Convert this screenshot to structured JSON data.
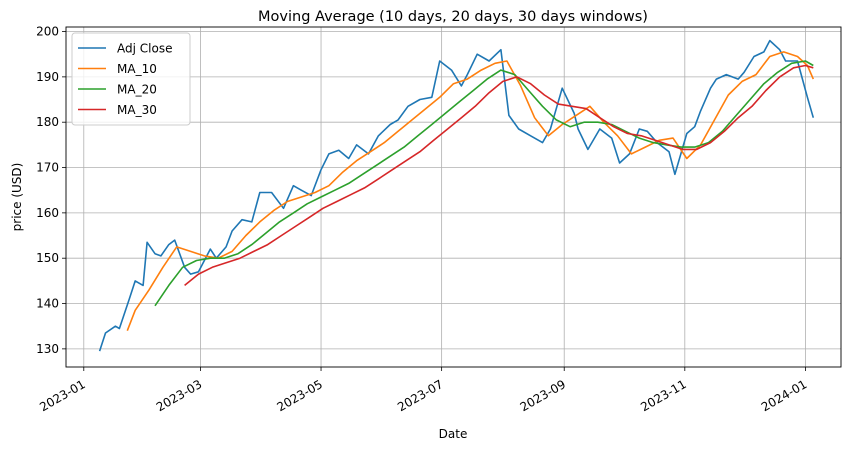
{
  "chart_data": {
    "type": "line",
    "title": "Moving Average (10 days, 20 days, 30 days windows)",
    "xlabel": "Date",
    "ylabel": "price (USD)",
    "xlim": [
      "2022-12-23",
      "2024-01-19"
    ],
    "ylim": [
      126,
      201
    ],
    "grid": true,
    "legend_position": "top-left",
    "x_ticks": [
      "2023-01",
      "2023-03",
      "2023-05",
      "2023-07",
      "2023-09",
      "2023-11",
      "2024-01"
    ],
    "y_ticks": [
      130,
      140,
      150,
      160,
      170,
      180,
      190,
      200
    ],
    "series": [
      {
        "name": "Adj Close",
        "color": "#1f77b4",
        "points": [
          [
            "2023-01-09",
            129.5
          ],
          [
            "2023-01-12",
            133.5
          ],
          [
            "2023-01-17",
            135
          ],
          [
            "2023-01-19",
            134.5
          ],
          [
            "2023-01-24",
            141
          ],
          [
            "2023-01-27",
            145
          ],
          [
            "2023-01-31",
            144
          ],
          [
            "2023-02-02",
            153.5
          ],
          [
            "2023-02-06",
            151
          ],
          [
            "2023-02-09",
            150.5
          ],
          [
            "2023-02-13",
            153
          ],
          [
            "2023-02-16",
            154
          ],
          [
            "2023-02-21",
            148
          ],
          [
            "2023-02-24",
            146.5
          ],
          [
            "2023-02-28",
            147
          ],
          [
            "2023-03-06",
            152
          ],
          [
            "2023-03-09",
            150
          ],
          [
            "2023-03-14",
            152.5
          ],
          [
            "2023-03-17",
            156
          ],
          [
            "2023-03-22",
            158.5
          ],
          [
            "2023-03-27",
            158
          ],
          [
            "2023-03-31",
            164.5
          ],
          [
            "2023-04-06",
            164.5
          ],
          [
            "2023-04-12",
            161
          ],
          [
            "2023-04-17",
            166
          ],
          [
            "2023-04-21",
            165
          ],
          [
            "2023-04-26",
            163.8
          ],
          [
            "2023-05-01",
            169.5
          ],
          [
            "2023-05-05",
            173
          ],
          [
            "2023-05-10",
            173.8
          ],
          [
            "2023-05-15",
            172
          ],
          [
            "2023-05-19",
            175
          ],
          [
            "2023-05-25",
            173
          ],
          [
            "2023-05-30",
            177
          ],
          [
            "2023-06-05",
            179.5
          ],
          [
            "2023-06-09",
            180.5
          ],
          [
            "2023-06-14",
            183.5
          ],
          [
            "2023-06-20",
            185
          ],
          [
            "2023-06-26",
            185.5
          ],
          [
            "2023-06-30",
            193.5
          ],
          [
            "2023-07-06",
            191.5
          ],
          [
            "2023-07-11",
            188
          ],
          [
            "2023-07-14",
            190.5
          ],
          [
            "2023-07-19",
            195
          ],
          [
            "2023-07-25",
            193.5
          ],
          [
            "2023-07-31",
            196
          ],
          [
            "2023-08-04",
            181.5
          ],
          [
            "2023-08-09",
            178.5
          ],
          [
            "2023-08-15",
            177
          ],
          [
            "2023-08-21",
            175.5
          ],
          [
            "2023-08-25",
            178.5
          ],
          [
            "2023-08-31",
            187.5
          ],
          [
            "2023-09-06",
            182
          ],
          [
            "2023-09-08",
            178.5
          ],
          [
            "2023-09-13",
            174
          ],
          [
            "2023-09-19",
            178.5
          ],
          [
            "2023-09-25",
            176.5
          ],
          [
            "2023-09-29",
            171
          ],
          [
            "2023-10-04",
            173
          ],
          [
            "2023-10-09",
            178.5
          ],
          [
            "2023-10-13",
            178
          ],
          [
            "2023-10-18",
            175.5
          ],
          [
            "2023-10-24",
            173.5
          ],
          [
            "2023-10-27",
            168.5
          ],
          [
            "2023-11-02",
            177.5
          ],
          [
            "2023-11-06",
            179
          ],
          [
            "2023-11-09",
            182.5
          ],
          [
            "2023-11-14",
            187.5
          ],
          [
            "2023-11-17",
            189.5
          ],
          [
            "2023-11-22",
            190.5
          ],
          [
            "2023-11-28",
            189.5
          ],
          [
            "2023-12-01",
            191
          ],
          [
            "2023-12-06",
            194.5
          ],
          [
            "2023-12-11",
            195.5
          ],
          [
            "2023-12-14",
            198
          ],
          [
            "2023-12-19",
            196
          ],
          [
            "2023-12-22",
            193.5
          ],
          [
            "2023-12-28",
            193.5
          ],
          [
            "2024-01-02",
            185.5
          ],
          [
            "2024-01-05",
            181
          ]
        ]
      },
      {
        "name": "MA_10",
        "color": "#ff7f0e",
        "points": [
          [
            "2023-01-23",
            134
          ],
          [
            "2023-01-27",
            138.5
          ],
          [
            "2023-02-03",
            143
          ],
          [
            "2023-02-10",
            148
          ],
          [
            "2023-02-17",
            152.5
          ],
          [
            "2023-02-24",
            151.5
          ],
          [
            "2023-03-03",
            150.5
          ],
          [
            "2023-03-10",
            150
          ],
          [
            "2023-03-17",
            151.5
          ],
          [
            "2023-03-24",
            155
          ],
          [
            "2023-03-31",
            158
          ],
          [
            "2023-04-07",
            160.5
          ],
          [
            "2023-04-14",
            162.5
          ],
          [
            "2023-04-21",
            163.5
          ],
          [
            "2023-04-28",
            164.5
          ],
          [
            "2023-05-05",
            166
          ],
          [
            "2023-05-12",
            169
          ],
          [
            "2023-05-19",
            171.5
          ],
          [
            "2023-05-26",
            173.5
          ],
          [
            "2023-06-02",
            175.5
          ],
          [
            "2023-06-09",
            178
          ],
          [
            "2023-06-16",
            180.5
          ],
          [
            "2023-06-23",
            183
          ],
          [
            "2023-06-30",
            185.5
          ],
          [
            "2023-07-07",
            188.5
          ],
          [
            "2023-07-14",
            189.5
          ],
          [
            "2023-07-21",
            191.5
          ],
          [
            "2023-07-28",
            193
          ],
          [
            "2023-08-03",
            193.5
          ],
          [
            "2023-08-10",
            188
          ],
          [
            "2023-08-17",
            181
          ],
          [
            "2023-08-24",
            177
          ],
          [
            "2023-08-31",
            179.5
          ],
          [
            "2023-09-07",
            181.5
          ],
          [
            "2023-09-14",
            183.5
          ],
          [
            "2023-09-21",
            180
          ],
          [
            "2023-09-28",
            177
          ],
          [
            "2023-10-05",
            173
          ],
          [
            "2023-10-12",
            174.5
          ],
          [
            "2023-10-19",
            176
          ],
          [
            "2023-10-26",
            176.5
          ],
          [
            "2023-11-02",
            172
          ],
          [
            "2023-11-09",
            175
          ],
          [
            "2023-11-16",
            180.5
          ],
          [
            "2023-11-23",
            186
          ],
          [
            "2023-11-30",
            189
          ],
          [
            "2023-12-07",
            190.5
          ],
          [
            "2023-12-14",
            194.5
          ],
          [
            "2023-12-21",
            195.5
          ],
          [
            "2023-12-28",
            194.5
          ],
          [
            "2024-01-02",
            192.5
          ],
          [
            "2024-01-05",
            189.5
          ]
        ]
      },
      {
        "name": "MA_20",
        "color": "#2ca02c",
        "points": [
          [
            "2023-02-06",
            139.5
          ],
          [
            "2023-02-13",
            144
          ],
          [
            "2023-02-20",
            148
          ],
          [
            "2023-02-27",
            149.5
          ],
          [
            "2023-03-06",
            150
          ],
          [
            "2023-03-13",
            150
          ],
          [
            "2023-03-20",
            151
          ],
          [
            "2023-03-27",
            153
          ],
          [
            "2023-04-03",
            155.5
          ],
          [
            "2023-04-10",
            158
          ],
          [
            "2023-04-17",
            160
          ],
          [
            "2023-04-24",
            162
          ],
          [
            "2023-05-01",
            163.5
          ],
          [
            "2023-05-08",
            165
          ],
          [
            "2023-05-15",
            166.5
          ],
          [
            "2023-05-22",
            168.5
          ],
          [
            "2023-05-29",
            170.5
          ],
          [
            "2023-06-05",
            172.5
          ],
          [
            "2023-06-12",
            174.5
          ],
          [
            "2023-06-19",
            177
          ],
          [
            "2023-06-26",
            179.5
          ],
          [
            "2023-07-03",
            182
          ],
          [
            "2023-07-10",
            184.5
          ],
          [
            "2023-07-17",
            187
          ],
          [
            "2023-07-24",
            189.5
          ],
          [
            "2023-07-31",
            191.5
          ],
          [
            "2023-08-07",
            190.5
          ],
          [
            "2023-08-14",
            187
          ],
          [
            "2023-08-21",
            183.5
          ],
          [
            "2023-08-28",
            180.5
          ],
          [
            "2023-09-04",
            179
          ],
          [
            "2023-09-11",
            180
          ],
          [
            "2023-09-18",
            180
          ],
          [
            "2023-09-25",
            179.5
          ],
          [
            "2023-10-02",
            178
          ],
          [
            "2023-10-09",
            176.5
          ],
          [
            "2023-10-16",
            175.5
          ],
          [
            "2023-10-23",
            175
          ],
          [
            "2023-10-30",
            174.5
          ],
          [
            "2023-11-06",
            174.5
          ],
          [
            "2023-11-13",
            175.5
          ],
          [
            "2023-11-20",
            178
          ],
          [
            "2023-11-27",
            181.5
          ],
          [
            "2023-12-04",
            185
          ],
          [
            "2023-12-11",
            188.5
          ],
          [
            "2023-12-18",
            191
          ],
          [
            "2023-12-25",
            193
          ],
          [
            "2024-01-01",
            193.5
          ],
          [
            "2024-01-05",
            192.5
          ]
        ]
      },
      {
        "name": "MA_30",
        "color": "#d62728",
        "points": [
          [
            "2023-02-21",
            144
          ],
          [
            "2023-02-28",
            146.5
          ],
          [
            "2023-03-07",
            148
          ],
          [
            "2023-03-14",
            149
          ],
          [
            "2023-03-21",
            150
          ],
          [
            "2023-03-28",
            151.5
          ],
          [
            "2023-04-04",
            153
          ],
          [
            "2023-04-11",
            155
          ],
          [
            "2023-04-18",
            157
          ],
          [
            "2023-04-25",
            159
          ],
          [
            "2023-05-02",
            161
          ],
          [
            "2023-05-09",
            162.5
          ],
          [
            "2023-05-16",
            164
          ],
          [
            "2023-05-23",
            165.5
          ],
          [
            "2023-05-30",
            167.5
          ],
          [
            "2023-06-06",
            169.5
          ],
          [
            "2023-06-13",
            171.5
          ],
          [
            "2023-06-20",
            173.5
          ],
          [
            "2023-06-27",
            176
          ],
          [
            "2023-07-04",
            178.5
          ],
          [
            "2023-07-11",
            181
          ],
          [
            "2023-07-18",
            183.5
          ],
          [
            "2023-07-25",
            186.5
          ],
          [
            "2023-08-01",
            189
          ],
          [
            "2023-08-08",
            190
          ],
          [
            "2023-08-15",
            188.5
          ],
          [
            "2023-08-22",
            186
          ],
          [
            "2023-08-29",
            184
          ],
          [
            "2023-09-05",
            183.5
          ],
          [
            "2023-09-12",
            183
          ],
          [
            "2023-09-19",
            181
          ],
          [
            "2023-09-26",
            179
          ],
          [
            "2023-10-03",
            177.5
          ],
          [
            "2023-10-10",
            177
          ],
          [
            "2023-10-17",
            176
          ],
          [
            "2023-10-24",
            175
          ],
          [
            "2023-10-31",
            174
          ],
          [
            "2023-11-07",
            174
          ],
          [
            "2023-11-14",
            175.5
          ],
          [
            "2023-11-21",
            178
          ],
          [
            "2023-11-28",
            181
          ],
          [
            "2023-12-05",
            183.5
          ],
          [
            "2023-12-12",
            187
          ],
          [
            "2023-12-19",
            190
          ],
          [
            "2023-12-26",
            192
          ],
          [
            "2024-01-01",
            192.5
          ],
          [
            "2024-01-05",
            192
          ]
        ]
      }
    ]
  }
}
